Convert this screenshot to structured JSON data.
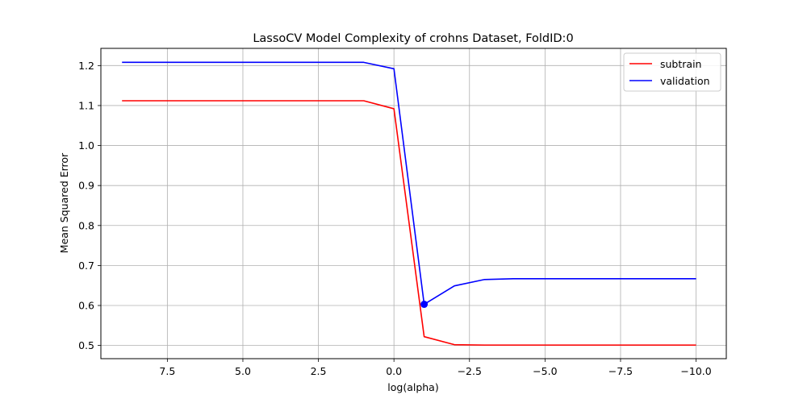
{
  "chart_data": {
    "type": "line",
    "title": "LassoCV Model Complexity of crohns Dataset, FoldID:0",
    "xlabel": "log(alpha)",
    "ylabel": "Mean Squared Error",
    "x_axis_inverted": true,
    "xlim": [
      9.7,
      -11.0
    ],
    "ylim": [
      0.467,
      1.243
    ],
    "grid": true,
    "legend_position": "top-right",
    "x_ticks": [
      7.5,
      5.0,
      2.5,
      0.0,
      -2.5,
      -5.0,
      -7.5,
      -10.0
    ],
    "x_tick_labels": [
      "7.5",
      "5.0",
      "2.5",
      "0.0",
      "−2.5",
      "−5.0",
      "−7.5",
      "−10.0"
    ],
    "y_ticks": [
      0.5,
      0.6,
      0.7,
      0.8,
      0.9,
      1.0,
      1.1,
      1.2
    ],
    "y_tick_labels": [
      "0.5",
      "0.6",
      "0.7",
      "0.8",
      "0.9",
      "1.0",
      "1.1",
      "1.2"
    ],
    "x": [
      9,
      8,
      7,
      6,
      5,
      4,
      3,
      2,
      1,
      0,
      -1,
      -2,
      -3,
      -4,
      -5,
      -6,
      -7,
      -8,
      -9,
      -10
    ],
    "series": [
      {
        "name": "subtrain",
        "color": "#ff0000",
        "values": [
          1.112,
          1.112,
          1.112,
          1.112,
          1.112,
          1.112,
          1.112,
          1.112,
          1.112,
          1.092,
          0.522,
          0.502,
          0.501,
          0.501,
          0.501,
          0.501,
          0.501,
          0.501,
          0.501,
          0.501
        ]
      },
      {
        "name": "validation",
        "color": "#0000ff",
        "values": [
          1.208,
          1.208,
          1.208,
          1.208,
          1.208,
          1.208,
          1.208,
          1.208,
          1.208,
          1.192,
          0.603,
          0.649,
          0.665,
          0.667,
          0.667,
          0.667,
          0.667,
          0.667,
          0.667,
          0.667
        ]
      }
    ],
    "marker": {
      "series": "validation",
      "x": -1,
      "y": 0.603,
      "color": "#0000ff"
    }
  }
}
